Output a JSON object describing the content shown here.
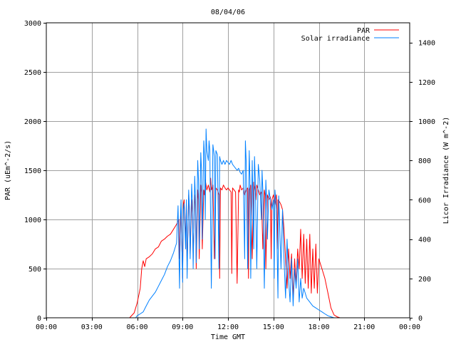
{
  "chart_data": {
    "type": "line",
    "title": "08/04/06",
    "xlabel": "Time GMT",
    "ylabel_left": "PAR (uEm^-2/s)",
    "ylabel_right": "Licor Irradiance (W m^-2)",
    "x_unit": "hours GMT",
    "xlim": [
      0,
      24
    ],
    "x_ticks": [
      0,
      3,
      6,
      9,
      12,
      15,
      18,
      21,
      24
    ],
    "x_tick_labels": [
      "00:00",
      "03:00",
      "06:00",
      "09:00",
      "12:00",
      "15:00",
      "18:00",
      "21:00",
      "00:00"
    ],
    "ylim_left": [
      0,
      3000
    ],
    "y_ticks_left": [
      0,
      500,
      1000,
      1500,
      2000,
      2500,
      3000
    ],
    "ylim_right": [
      0,
      1500
    ],
    "y_ticks_right": [
      0,
      200,
      400,
      600,
      800,
      1000,
      1200,
      1400
    ],
    "grid": true,
    "legend_position": "top-right",
    "series": [
      {
        "name": "PAR",
        "axis": "left",
        "color": "#ff0000",
        "x": [
          0,
          5.5,
          5.8,
          6.0,
          6.2,
          6.3,
          6.4,
          6.5,
          6.6,
          6.8,
          7.0,
          7.2,
          7.4,
          7.6,
          7.8,
          8.0,
          8.2,
          8.4,
          8.6,
          8.75,
          8.8,
          8.9,
          9.0,
          9.05,
          9.1,
          9.2,
          9.25,
          9.3,
          9.4,
          9.45,
          9.5,
          9.6,
          9.65,
          9.7,
          9.8,
          9.85,
          9.9,
          10.0,
          10.05,
          10.1,
          10.2,
          10.25,
          10.3,
          10.4,
          10.45,
          10.5,
          10.6,
          10.7,
          10.8,
          10.85,
          10.9,
          11.0,
          11.1,
          11.2,
          11.3,
          11.4,
          11.45,
          11.5,
          11.6,
          11.7,
          11.8,
          11.9,
          12.0,
          12.1,
          12.2,
          12.25,
          12.3,
          12.4,
          12.5,
          12.6,
          12.7,
          12.75,
          12.8,
          12.9,
          13.0,
          13.1,
          13.2,
          13.3,
          13.35,
          13.4,
          13.5,
          13.6,
          13.7,
          13.8,
          13.85,
          13.9,
          14.0,
          14.1,
          14.2,
          14.3,
          14.4,
          14.45,
          14.5,
          14.6,
          14.7,
          14.8,
          14.85,
          14.9,
          15.0,
          15.1,
          15.2,
          15.25,
          15.3,
          15.4,
          15.5,
          15.6,
          15.7,
          15.8,
          15.9,
          16.0,
          16.1,
          16.2,
          16.3,
          16.4,
          16.5,
          16.6,
          16.7,
          16.8,
          16.9,
          17.0,
          17.1,
          17.2,
          17.3,
          17.4,
          17.5,
          17.6,
          17.7,
          17.8,
          17.9,
          18.0,
          18.1,
          18.2,
          18.4,
          18.6,
          18.8,
          19.0,
          19.2,
          19.4,
          24
        ],
        "y": [
          0,
          0,
          50,
          150,
          300,
          500,
          580,
          520,
          600,
          620,
          650,
          700,
          720,
          780,
          800,
          830,
          850,
          900,
          950,
          1000,
          600,
          1100,
          400,
          1150,
          1200,
          800,
          1100,
          500,
          1250,
          1100,
          650,
          1200,
          1050,
          600,
          1250,
          1150,
          500,
          1300,
          1200,
          600,
          1350,
          1280,
          700,
          1300,
          1250,
          1400,
          1300,
          1350,
          1280,
          1420,
          1300,
          1350,
          600,
          1320,
          1300,
          1250,
          400,
          1320,
          1300,
          1350,
          1320,
          1300,
          1320,
          1300,
          1280,
          450,
          1320,
          1300,
          1280,
          350,
          1300,
          1280,
          1350,
          1300,
          1320,
          1250,
          1300,
          1320,
          400,
          1300,
          1350,
          600,
          1380,
          1300,
          1200,
          1350,
          1300,
          1250,
          1280,
          700,
          1300,
          1250,
          500,
          1250,
          1200,
          1230,
          600,
          1200,
          1250,
          1150,
          1250,
          700,
          1200,
          1180,
          1150,
          1100,
          900,
          600,
          300,
          700,
          400,
          650,
          200,
          600,
          350,
          700,
          500,
          900,
          400,
          850,
          350,
          800,
          300,
          850,
          250,
          700,
          300,
          750,
          250,
          600,
          550,
          500,
          400,
          250,
          100,
          30,
          10,
          0,
          0
        ]
      },
      {
        "name": "Solar irradiance",
        "axis": "right",
        "color": "#0080ff",
        "x": [
          0,
          5.9,
          6.0,
          6.2,
          6.4,
          6.6,
          6.8,
          7.0,
          7.2,
          7.4,
          7.6,
          7.8,
          8.0,
          8.2,
          8.4,
          8.6,
          8.7,
          8.8,
          8.85,
          8.9,
          9.0,
          9.05,
          9.1,
          9.2,
          9.25,
          9.3,
          9.4,
          9.45,
          9.5,
          9.6,
          9.65,
          9.7,
          9.8,
          9.85,
          9.9,
          10.0,
          10.05,
          10.1,
          10.2,
          10.25,
          10.3,
          10.4,
          10.45,
          10.5,
          10.55,
          10.6,
          10.7,
          10.75,
          10.8,
          10.9,
          11.0,
          11.1,
          11.15,
          11.2,
          11.3,
          11.4,
          11.45,
          11.5,
          11.6,
          11.7,
          11.8,
          11.9,
          12.0,
          12.1,
          12.2,
          12.3,
          12.4,
          12.5,
          12.6,
          12.7,
          12.8,
          12.9,
          13.0,
          13.1,
          13.15,
          13.2,
          13.3,
          13.4,
          13.45,
          13.5,
          13.6,
          13.7,
          13.75,
          13.8,
          13.9,
          14.0,
          14.1,
          14.2,
          14.25,
          14.3,
          14.4,
          14.5,
          14.55,
          14.6,
          14.7,
          14.8,
          14.9,
          15.0,
          15.05,
          15.1,
          15.2,
          15.3,
          15.35,
          15.4,
          15.5,
          15.6,
          15.7,
          15.8,
          15.9,
          16.0,
          16.1,
          16.2,
          16.3,
          16.4,
          16.5,
          16.6,
          16.7,
          16.8,
          16.9,
          17.0,
          17.2,
          17.4,
          17.6,
          17.8,
          18.0,
          18.2,
          18.4,
          18.6,
          18.8,
          19.0,
          19.2,
          24
        ],
        "y": [
          0,
          0,
          10,
          20,
          30,
          60,
          90,
          110,
          130,
          160,
          190,
          220,
          260,
          290,
          330,
          380,
          570,
          150,
          500,
          600,
          180,
          550,
          580,
          350,
          600,
          200,
          650,
          560,
          300,
          680,
          580,
          250,
          720,
          600,
          280,
          800,
          700,
          350,
          840,
          750,
          400,
          900,
          820,
          500,
          960,
          850,
          800,
          900,
          850,
          150,
          880,
          820,
          300,
          850,
          830,
          250,
          820,
          800,
          780,
          800,
          780,
          800,
          790,
          780,
          800,
          780,
          770,
          760,
          750,
          760,
          740,
          730,
          750,
          300,
          900,
          800,
          250,
          850,
          700,
          200,
          800,
          350,
          820,
          700,
          250,
          780,
          700,
          500,
          750,
          650,
          150,
          700,
          600,
          400,
          650,
          600,
          550,
          600,
          200,
          650,
          550,
          100,
          620,
          500,
          250,
          550,
          300,
          100,
          400,
          200,
          80,
          300,
          60,
          250,
          150,
          300,
          80,
          200,
          100,
          150,
          100,
          80,
          60,
          50,
          40,
          30,
          20,
          10,
          5,
          0,
          0,
          0
        ]
      }
    ]
  }
}
